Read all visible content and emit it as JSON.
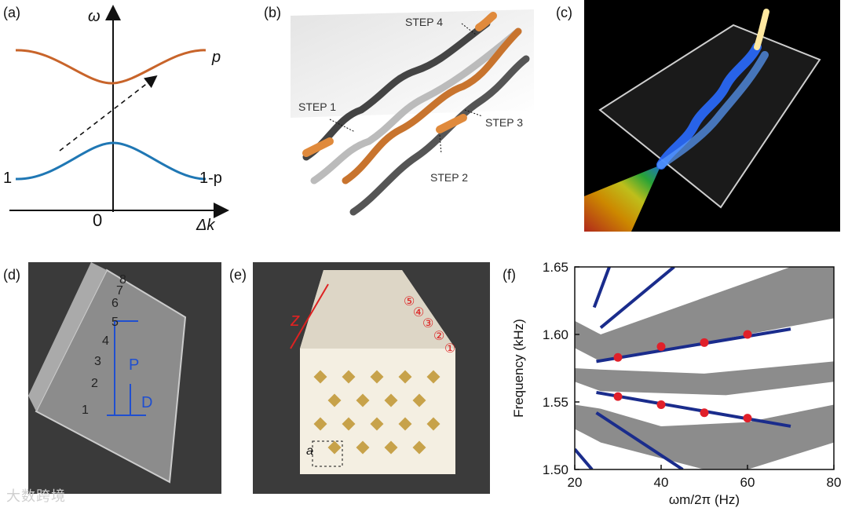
{
  "panels": {
    "a": {
      "label": "(a)",
      "y_axis": "ω",
      "x_axis": "Δk",
      "origin": "0",
      "upper_band": "p",
      "left_label": "1",
      "lower_band": "1-p",
      "upper_color": "#c8642a",
      "lower_color": "#1f77b4"
    },
    "b": {
      "label": "(b)",
      "steps": [
        "STEP 1",
        "STEP 2",
        "STEP 3",
        "STEP 4"
      ],
      "accent": "#e08a3c"
    },
    "c": {
      "label": "(c)"
    },
    "d": {
      "label": "(d)",
      "dim_long": "P",
      "dim_short": "D",
      "numbers": [
        "1",
        "2",
        "3",
        "4",
        "5",
        "6",
        "7",
        "8"
      ]
    },
    "e": {
      "label": "(e)",
      "axis": "z",
      "cell": "a",
      "circled": [
        "①",
        "②",
        "③",
        "④",
        "⑤"
      ]
    },
    "f": {
      "label": "(f)",
      "ylabel": "Frequency (kHz)",
      "xlabel": "ωm/2π (Hz)"
    }
  },
  "chart_data": {
    "type": "scatter",
    "xlabel": "ωm/2π (Hz)",
    "ylabel": "Frequency (kHz)",
    "xlim": [
      20,
      80
    ],
    "ylim": [
      1.5,
      1.65
    ],
    "xticks": [
      "20",
      "40",
      "60",
      "80"
    ],
    "yticks": [
      "1.50",
      "1.55",
      "1.60",
      "1.65"
    ],
    "series": [
      {
        "values": [
          {
            "x": 30,
            "y": 1.583
          },
          {
            "x": 40,
            "y": 1.591
          },
          {
            "x": 50,
            "y": 1.594
          },
          {
            "x": 60,
            "y": 1.6
          }
        ]
      },
      {
        "values": [
          {
            "x": 30,
            "y": 1.554
          },
          {
            "x": 40,
            "y": 1.548
          },
          {
            "x": 50,
            "y": 1.542
          },
          {
            "x": 60,
            "y": 1.538
          }
        ]
      }
    ],
    "point_color": "#e0202a",
    "line_color": "#1a2c8c",
    "band_color": "#8c8c8c"
  },
  "watermark": "大数跨境"
}
